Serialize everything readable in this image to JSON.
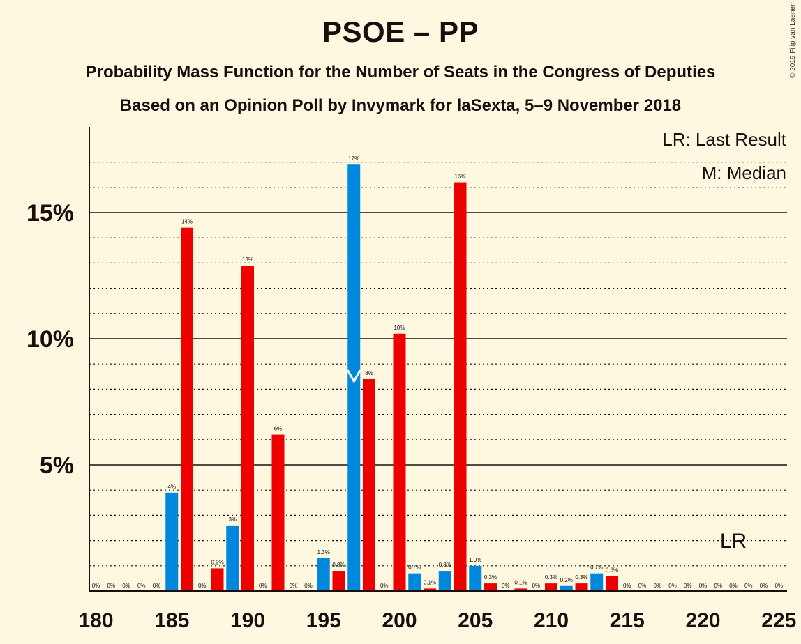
{
  "chart_data": {
    "type": "bar",
    "title": "PSOE – PP",
    "subtitle": "Probability Mass Function for the Number of Seats in the Congress of Deputies",
    "subtitle2": "Based on an Opinion Poll by Invymark for laSexta, 5–9 November 2018",
    "copyright": "© 2019 Filip van Laenen",
    "legend": {
      "lr": "LR: Last Result",
      "m": "M: Median",
      "placement": "top-right"
    },
    "x_ticks": [
      180,
      185,
      190,
      195,
      200,
      205,
      210,
      215,
      220,
      225
    ],
    "y_ticks": [
      {
        "value": 5,
        "label": "5%"
      },
      {
        "value": 10,
        "label": "10%"
      },
      {
        "value": 15,
        "label": "15%"
      }
    ],
    "xlim": [
      180,
      225
    ],
    "ylim": [
      0,
      18.5
    ],
    "median_seat": 197,
    "median_marker": "M",
    "last_result_seat": 222,
    "last_result_marker": "LR",
    "colors": {
      "blue": "#0088DD",
      "red": "#EE0000",
      "text": "#1a0d0d"
    },
    "bars": [
      {
        "seat": 180,
        "value": 0,
        "label": "0%",
        "color": "blue"
      },
      {
        "seat": 181,
        "value": 0,
        "label": "0%",
        "color": "red"
      },
      {
        "seat": 182,
        "value": 0,
        "label": "0%",
        "color": "blue"
      },
      {
        "seat": 183,
        "value": 0,
        "label": "0%",
        "color": "red"
      },
      {
        "seat": 184,
        "value": 0,
        "label": "0%",
        "color": "blue"
      },
      {
        "seat": 185,
        "value": 3.9,
        "label": "4%",
        "color": "blue"
      },
      {
        "seat": 186,
        "value": 14.4,
        "label": "14%",
        "color": "red"
      },
      {
        "seat": 187,
        "value": 0,
        "label": "0%",
        "color": "blue"
      },
      {
        "seat": 188,
        "value": 0.9,
        "label": "0.9%",
        "color": "red"
      },
      {
        "seat": 189,
        "value": 2.6,
        "label": "3%",
        "color": "blue"
      },
      {
        "seat": 190,
        "value": 12.9,
        "label": "13%",
        "color": "red"
      },
      {
        "seat": 191,
        "value": 0,
        "label": "0%",
        "color": "blue"
      },
      {
        "seat": 192,
        "value": 6.2,
        "label": "6%",
        "color": "red"
      },
      {
        "seat": 193,
        "value": 0,
        "label": "0%",
        "color": "blue"
      },
      {
        "seat": 194,
        "value": 0,
        "label": "0%",
        "color": "red"
      },
      {
        "seat": 195,
        "value": 1.3,
        "label": "1.3%",
        "color": "blue"
      },
      {
        "seat": 196,
        "value": 0.8,
        "label": "0.8%",
        "color": "red"
      },
      {
        "seat": 197,
        "value": 16.9,
        "label": "17%",
        "color": "blue"
      },
      {
        "seat": 198,
        "value": 8.4,
        "label": "8%",
        "color": "red"
      },
      {
        "seat": 199,
        "value": 0,
        "label": "0%",
        "color": "blue"
      },
      {
        "seat": 200,
        "value": 10.2,
        "label": "10%",
        "color": "red"
      },
      {
        "seat": 201,
        "value": 0.7,
        "label": "0.7%",
        "color": "blue"
      },
      {
        "seat": 202,
        "value": 0.1,
        "label": "0.1%",
        "color": "red"
      },
      {
        "seat": 203,
        "value": 0.8,
        "label": "0.8%",
        "color": "blue"
      },
      {
        "seat": 204,
        "value": 16.2,
        "label": "16%",
        "color": "red"
      },
      {
        "seat": 205,
        "value": 1.0,
        "label": "1.0%",
        "color": "blue"
      },
      {
        "seat": 206,
        "value": 0.3,
        "label": "0.3%",
        "color": "red"
      },
      {
        "seat": 207,
        "value": 0,
        "label": "0%",
        "color": "blue"
      },
      {
        "seat": 208,
        "value": 0.1,
        "label": "0.1%",
        "color": "red"
      },
      {
        "seat": 209,
        "value": 0,
        "label": "0%",
        "color": "blue"
      },
      {
        "seat": 210,
        "value": 0.3,
        "label": "0.3%",
        "color": "red"
      },
      {
        "seat": 211,
        "value": 0.2,
        "label": "0.2%",
        "color": "blue"
      },
      {
        "seat": 212,
        "value": 0.3,
        "label": "0.3%",
        "color": "red"
      },
      {
        "seat": 213,
        "value": 0.7,
        "label": "0.7%",
        "color": "blue"
      },
      {
        "seat": 214,
        "value": 0.6,
        "label": "0.6%",
        "color": "red"
      },
      {
        "seat": 215,
        "value": 0,
        "label": "0%",
        "color": "blue"
      },
      {
        "seat": 216,
        "value": 0,
        "label": "0%",
        "color": "red"
      },
      {
        "seat": 217,
        "value": 0,
        "label": "0%",
        "color": "blue"
      },
      {
        "seat": 218,
        "value": 0,
        "label": "0%",
        "color": "red"
      },
      {
        "seat": 219,
        "value": 0,
        "label": "0%",
        "color": "blue"
      },
      {
        "seat": 220,
        "value": 0,
        "label": "0%",
        "color": "red"
      },
      {
        "seat": 221,
        "value": 0,
        "label": "0%",
        "color": "blue"
      },
      {
        "seat": 222,
        "value": 0,
        "label": "0%",
        "color": "red"
      },
      {
        "seat": 223,
        "value": 0,
        "label": "0%",
        "color": "blue"
      },
      {
        "seat": 224,
        "value": 0,
        "label": "0%",
        "color": "red"
      },
      {
        "seat": 225,
        "value": 0,
        "label": "0%",
        "color": "blue"
      }
    ]
  }
}
